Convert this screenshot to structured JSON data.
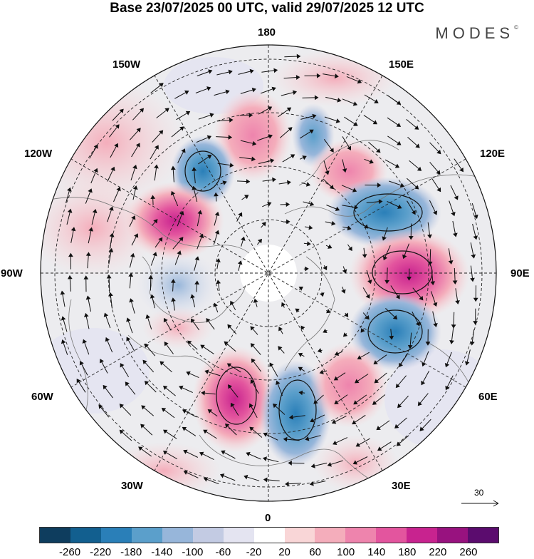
{
  "title": "Base 23/07/2025 00 UTC, valid 29/07/2025 12 UTC",
  "brand": "MODES",
  "brand_mark": "©",
  "longitude_labels": {
    "lon_180": "180",
    "lon_150e": "150E",
    "lon_120e": "120E",
    "lon_90e": "90E",
    "lon_60e": "60E",
    "lon_30e": "30E",
    "lon_0": "0",
    "lon_30w": "30W",
    "lon_60w": "60W",
    "lon_90w": "90W",
    "lon_120w": "120W",
    "lon_150w": "150W"
  },
  "reference_vector": "30",
  "colorbar": {
    "colors": [
      "#0e3d5e",
      "#125f8f",
      "#2a7fb8",
      "#5b9fcb",
      "#97b6da",
      "#c3cbe3",
      "#e4e4f1",
      "#ffffff",
      "#f9d6d7",
      "#f4adbb",
      "#ee84ad",
      "#e3559e",
      "#c8238f",
      "#98127f",
      "#5b0c6e"
    ],
    "ticks": [
      "-260",
      "-220",
      "-180",
      "-140",
      "-100",
      "-60",
      "-20",
      "20",
      "60",
      "100",
      "140",
      "180",
      "220",
      "260"
    ]
  }
}
